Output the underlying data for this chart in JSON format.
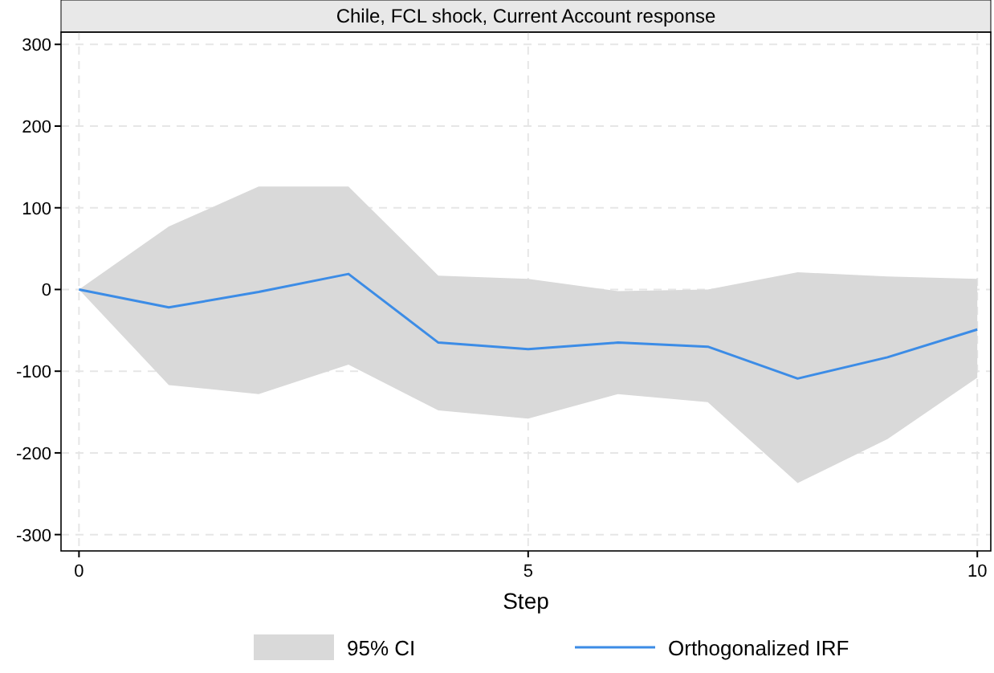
{
  "chart_data": {
    "type": "line",
    "title": "Chile, FCL shock, Current Account response",
    "xlabel": "Step",
    "x": [
      0,
      1,
      2,
      3,
      4,
      5,
      6,
      7,
      8,
      9,
      10
    ],
    "series": [
      {
        "name": "Orthogonalized IRF",
        "color": "#3c8ce6",
        "values": [
          0,
          -22,
          -3,
          19,
          -65,
          -73,
          -65,
          -70,
          -109,
          -83,
          -49
        ],
        "lower": [
          0,
          -117,
          -128,
          -92,
          -148,
          -158,
          -128,
          -138,
          -237,
          -183,
          -108
        ],
        "upper": [
          0,
          77,
          126,
          126,
          17,
          13,
          -2,
          0,
          21,
          16,
          13
        ]
      }
    ],
    "annotations": [
      "95% CI"
    ],
    "xlim": [
      -0.2,
      10.15
    ],
    "xticks": [
      0,
      5,
      10
    ],
    "ylim": [
      -320,
      315
    ],
    "yticks": [
      -300,
      -200,
      -100,
      0,
      100,
      200,
      300
    ],
    "grid": true,
    "legend": "bottom",
    "line_style": "solid",
    "marker": "none"
  }
}
